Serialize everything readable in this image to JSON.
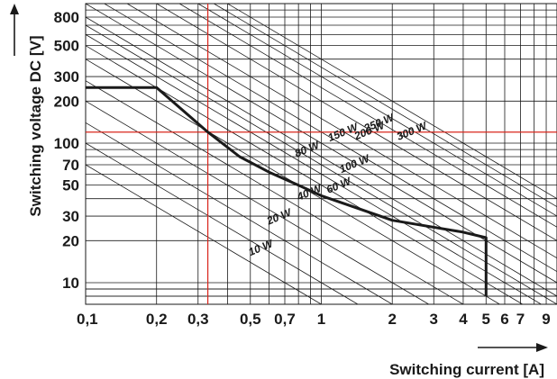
{
  "chart_data": {
    "type": "line",
    "xlabel": "Switching current [A]",
    "ylabel": "Switching voltage DC [V]",
    "xscale": "log",
    "yscale": "log",
    "xlim": [
      0.1,
      10
    ],
    "ylim": [
      7,
      1000
    ],
    "x_ticks": [
      0.1,
      0.2,
      0.3,
      0.5,
      0.7,
      1,
      2,
      3,
      4,
      5,
      6,
      7,
      9
    ],
    "x_tick_labels": [
      "0,1",
      "0,2",
      "0,3",
      "0,5",
      "0,7",
      "1",
      "2",
      "3",
      "4",
      "5",
      "6",
      "7",
      "9"
    ],
    "y_ticks": [
      10,
      20,
      30,
      50,
      70,
      100,
      200,
      300,
      500,
      800
    ],
    "y_tick_labels": [
      "10",
      "20",
      "30",
      "50",
      "70",
      "100",
      "200",
      "300",
      "500",
      "800"
    ],
    "power_lines": [
      {
        "label": "10 W",
        "watts": 10
      },
      {
        "label": "20 W",
        "watts": 20
      },
      {
        "label": "40 W",
        "watts": 40
      },
      {
        "label": "60 W",
        "watts": 60
      },
      {
        "label": "80 W",
        "watts": 80
      },
      {
        "label": "100 W",
        "watts": 100
      },
      {
        "label": "150 W",
        "watts": 150
      },
      {
        "label": "200 W",
        "watts": 200
      },
      {
        "label": "250 W",
        "watts": 250
      },
      {
        "label": "300 W",
        "watts": 300
      }
    ],
    "series": [
      {
        "x": [
          0.1,
          0.2,
          0.33,
          0.45,
          0.6,
          0.8,
          1.0,
          2.0,
          4.0,
          5.0,
          5.0
        ],
        "y": [
          250,
          250,
          120,
          80,
          62,
          50,
          42,
          28,
          23,
          21,
          8
        ],
        "color": "#1a1a1a"
      }
    ],
    "reference_lines": [
      {
        "orientation": "vertical",
        "x": 0.33,
        "color": "#d9261c"
      },
      {
        "orientation": "horizontal",
        "y": 120,
        "color": "#d9261c"
      }
    ],
    "grid": true
  }
}
